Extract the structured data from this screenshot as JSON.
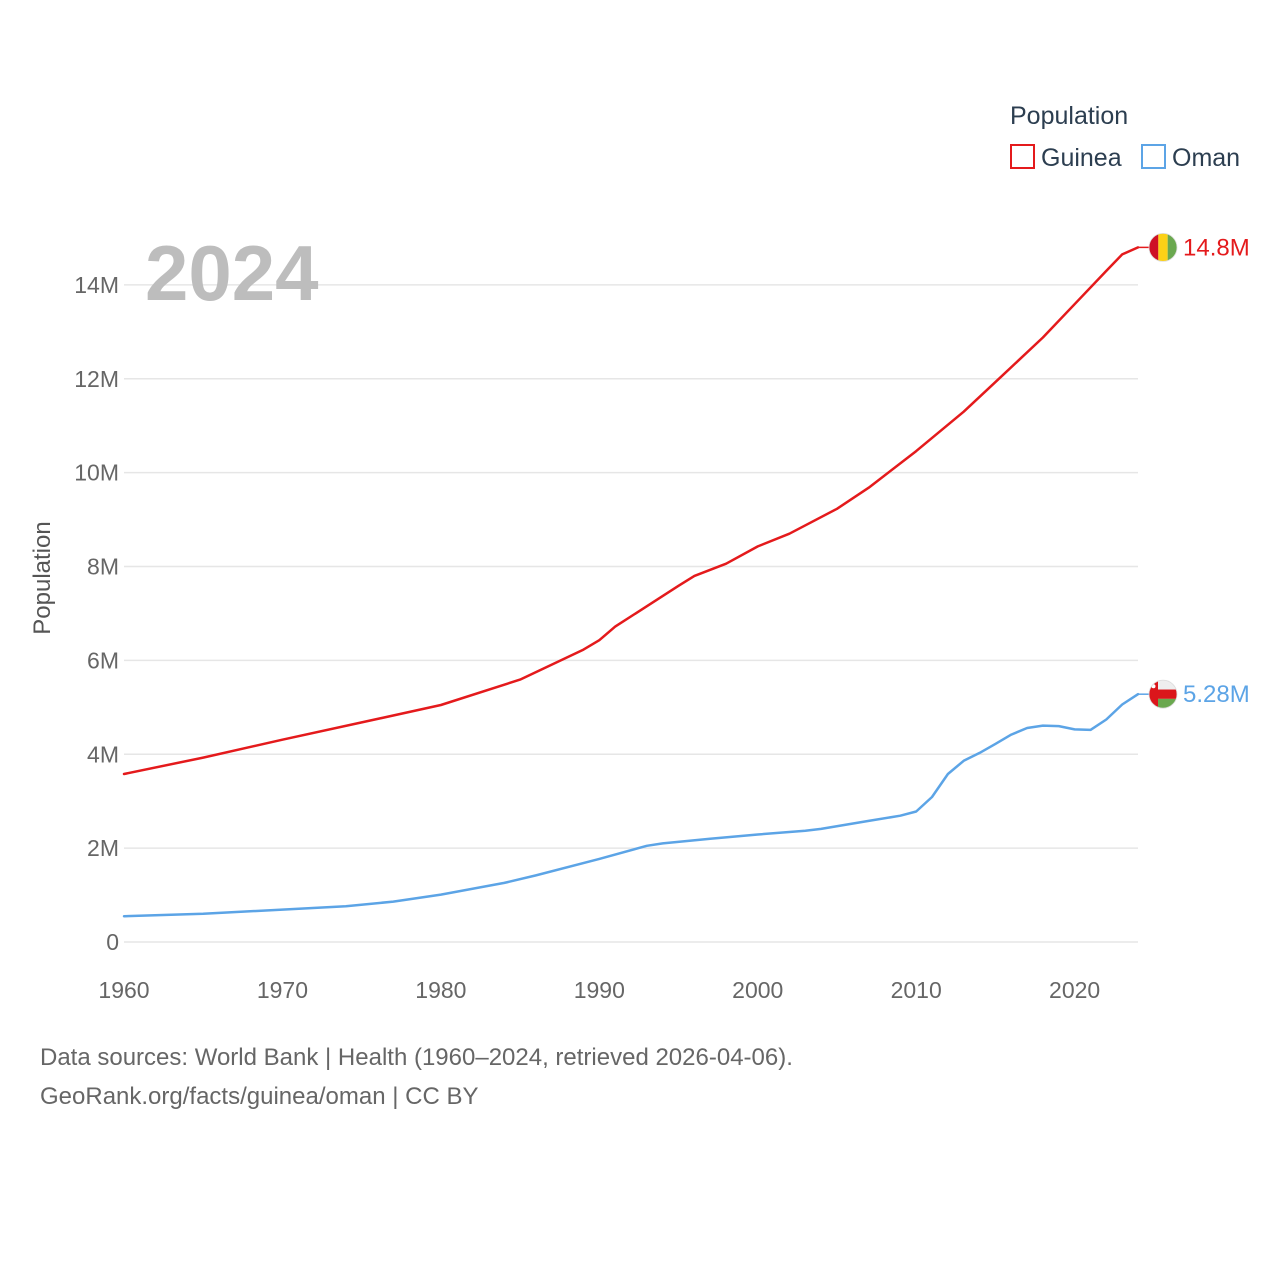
{
  "chart_data": {
    "type": "line",
    "title_year": "2024",
    "ylabel": "Population",
    "xlabel": "",
    "xlim": [
      1960,
      2024
    ],
    "ylim": [
      0,
      15000000
    ],
    "x_ticks": [
      1960,
      1970,
      1980,
      1990,
      2000,
      2010,
      2020
    ],
    "x_tick_labels": [
      "1960",
      "1970",
      "1980",
      "1990",
      "2000",
      "2010",
      "2020"
    ],
    "y_ticks": [
      0,
      2000000,
      4000000,
      6000000,
      8000000,
      10000000,
      12000000,
      14000000
    ],
    "y_tick_labels": [
      "0",
      "2M",
      "4M",
      "6M",
      "8M",
      "10M",
      "12M",
      "14M"
    ],
    "grid": true,
    "legend": {
      "title": "Population",
      "position": "top-right",
      "entries": [
        "Guinea",
        "Oman"
      ]
    },
    "series": [
      {
        "name": "Guinea",
        "color": "#e41a1c",
        "end_label": "14.8M",
        "flag": "guinea-flag",
        "points": [
          [
            1960,
            3580000
          ],
          [
            1965,
            3930000
          ],
          [
            1970,
            4310000
          ],
          [
            1975,
            4680000
          ],
          [
            1980,
            5050000
          ],
          [
            1985,
            5590000
          ],
          [
            1989,
            6230000
          ],
          [
            1990,
            6430000
          ],
          [
            1991,
            6720000
          ],
          [
            1995,
            7590000
          ],
          [
            1996,
            7800000
          ],
          [
            1998,
            8060000
          ],
          [
            2000,
            8430000
          ],
          [
            2002,
            8700000
          ],
          [
            2005,
            9230000
          ],
          [
            2007,
            9680000
          ],
          [
            2010,
            10460000
          ],
          [
            2013,
            11300000
          ],
          [
            2015,
            11930000
          ],
          [
            2018,
            12880000
          ],
          [
            2020,
            13590000
          ],
          [
            2022,
            14300000
          ],
          [
            2023,
            14650000
          ],
          [
            2024,
            14800000
          ]
        ]
      },
      {
        "name": "Oman",
        "color": "#5ca4e6",
        "end_label": "5.28M",
        "flag": "oman-flag",
        "points": [
          [
            1960,
            550000
          ],
          [
            1965,
            600000
          ],
          [
            1970,
            690000
          ],
          [
            1974,
            760000
          ],
          [
            1977,
            860000
          ],
          [
            1980,
            1010000
          ],
          [
            1984,
            1260000
          ],
          [
            1986,
            1420000
          ],
          [
            1990,
            1770000
          ],
          [
            1993,
            2050000
          ],
          [
            1994,
            2100000
          ],
          [
            1997,
            2200000
          ],
          [
            2000,
            2290000
          ],
          [
            2003,
            2370000
          ],
          [
            2004,
            2410000
          ],
          [
            2007,
            2580000
          ],
          [
            2009,
            2690000
          ],
          [
            2010,
            2780000
          ],
          [
            2011,
            3090000
          ],
          [
            2012,
            3580000
          ],
          [
            2013,
            3860000
          ],
          [
            2014,
            4030000
          ],
          [
            2015,
            4220000
          ],
          [
            2016,
            4420000
          ],
          [
            2017,
            4560000
          ],
          [
            2018,
            4610000
          ],
          [
            2019,
            4600000
          ],
          [
            2020,
            4530000
          ],
          [
            2021,
            4520000
          ],
          [
            2022,
            4740000
          ],
          [
            2023,
            5060000
          ],
          [
            2024,
            5280000
          ]
        ]
      }
    ]
  },
  "footer": {
    "line1": "Data sources: World Bank | Health (1960–2024, retrieved 2026-04-06).",
    "line2": "GeoRank.org/facts/guinea/oman | CC BY"
  }
}
